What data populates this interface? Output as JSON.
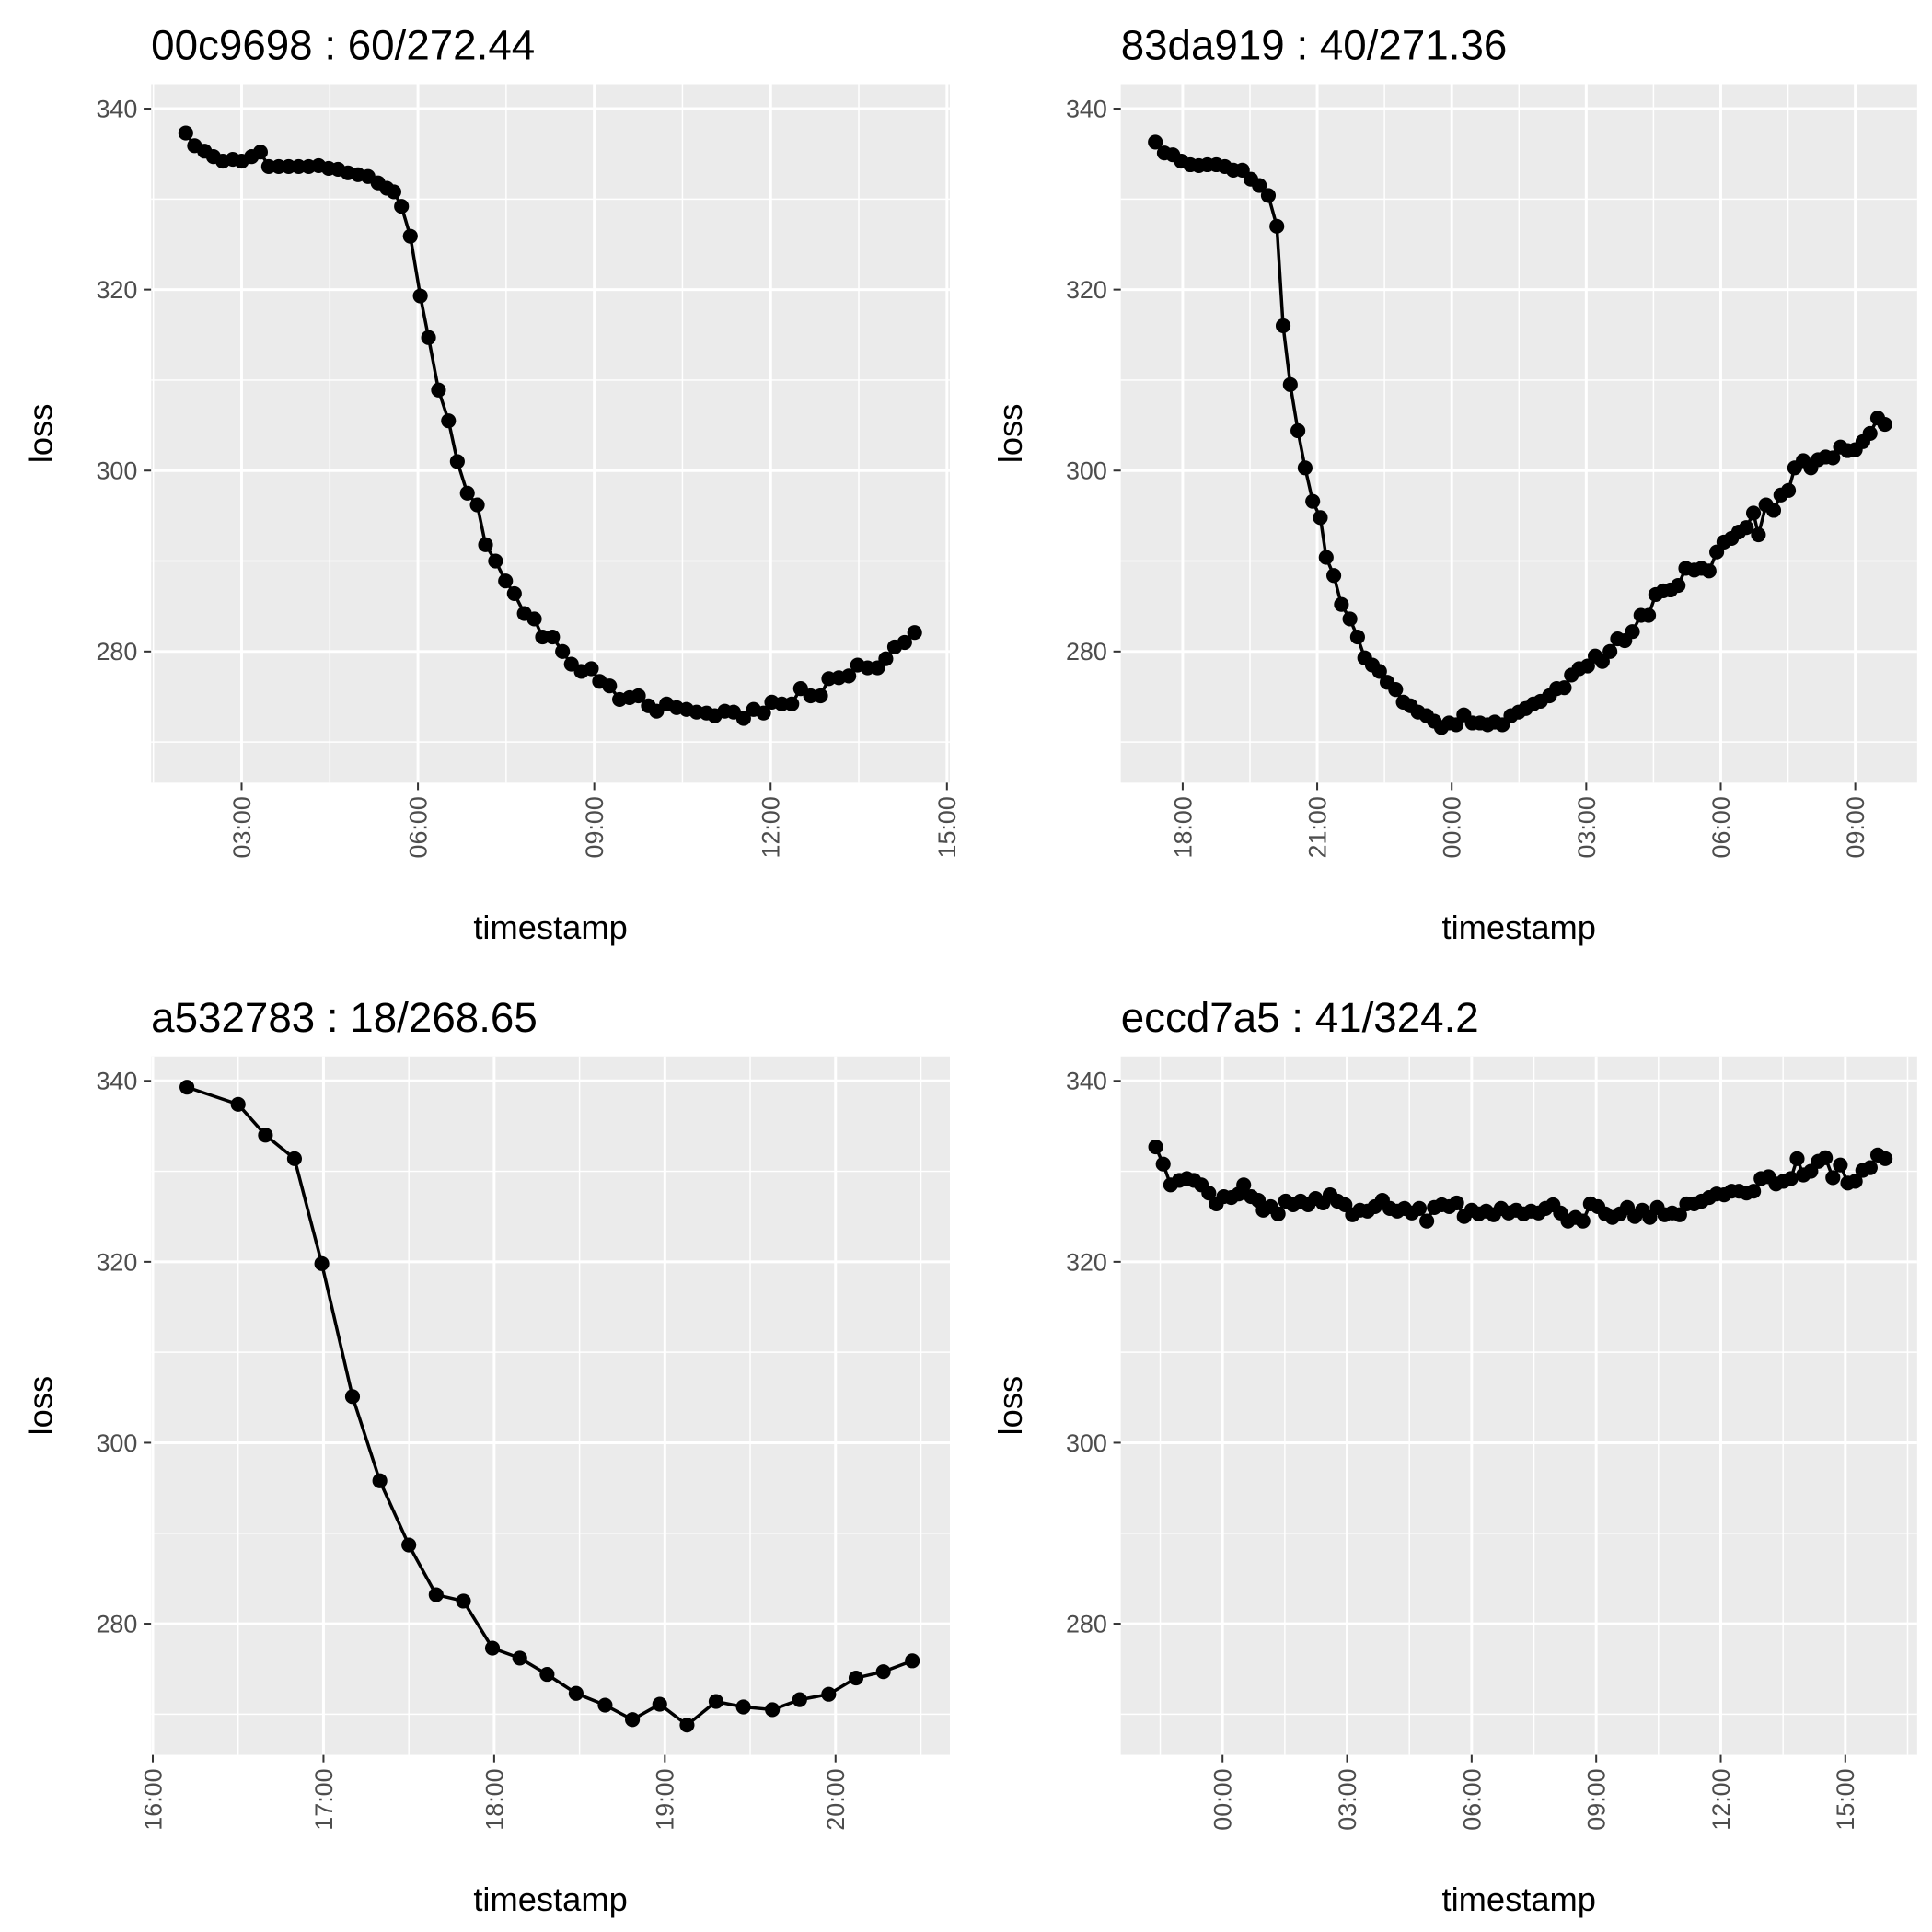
{
  "chart_data": [
    {
      "type": "line",
      "title": "00c9698 : 60/272.44",
      "xlabel": "timestamp",
      "ylabel": "loss",
      "color": "#000000",
      "grid": true,
      "x": [
        2.05,
        2.2,
        2.37,
        2.52,
        2.68,
        2.85,
        3.0,
        3.17,
        3.32,
        3.46,
        3.63,
        3.8,
        3.97,
        4.14,
        4.31,
        4.48,
        4.64,
        4.81,
        4.98,
        5.15,
        5.32,
        5.47,
        5.59,
        5.72,
        5.87,
        6.04,
        6.18,
        6.35,
        6.52,
        6.67,
        6.84,
        7.01,
        7.15,
        7.32,
        7.49,
        7.64,
        7.81,
        7.98,
        8.12,
        8.29,
        8.46,
        8.61,
        8.78,
        8.95,
        9.09,
        9.26,
        9.43,
        9.6,
        9.75,
        9.92,
        10.06,
        10.23,
        10.4,
        10.57,
        10.74,
        10.91,
        11.05,
        11.22,
        11.37,
        11.54,
        11.71,
        11.88,
        12.02,
        12.19,
        12.36,
        12.51,
        12.68,
        12.85,
        12.99,
        13.16,
        13.33,
        13.48,
        13.65,
        13.82,
        13.96,
        14.11,
        14.28,
        14.45
      ],
      "values": [
        337.3,
        335.9,
        335.3,
        334.7,
        334.2,
        334.4,
        334.2,
        334.7,
        335.2,
        333.6,
        333.6,
        333.6,
        333.6,
        333.6,
        333.7,
        333.4,
        333.3,
        332.9,
        332.7,
        332.5,
        331.8,
        331.2,
        330.8,
        329.2,
        325.9,
        319.3,
        314.7,
        308.9,
        305.5,
        301.0,
        297.5,
        296.2,
        291.8,
        290.0,
        287.8,
        286.4,
        284.2,
        283.6,
        281.6,
        281.6,
        280.0,
        278.6,
        277.8,
        278.1,
        276.7,
        276.2,
        274.7,
        274.9,
        275.1,
        274.0,
        273.4,
        274.2,
        273.8,
        273.6,
        273.3,
        273.2,
        272.9,
        273.4,
        273.3,
        272.6,
        273.6,
        273.2,
        274.4,
        274.2,
        274.2,
        275.9,
        275.1,
        275.1,
        277.0,
        277.1,
        277.3,
        278.5,
        278.2,
        278.2,
        279.2,
        280.5,
        281.0,
        282.1
      ],
      "xlim": [
        1.46,
        15.05
      ],
      "xticks": [
        {
          "value": 3,
          "label": "03:00"
        },
        {
          "value": 6,
          "label": "06:00"
        },
        {
          "value": 9,
          "label": "09:00"
        },
        {
          "value": 12,
          "label": "12:00"
        },
        {
          "value": 15,
          "label": "15:00"
        }
      ],
      "xminor": [
        1.5,
        4.5,
        7.5,
        10.5,
        13.5
      ],
      "ylim": [
        265.5,
        342.7
      ],
      "yticks": [
        280,
        300,
        320,
        340
      ],
      "yminor": [
        270,
        290,
        310,
        330
      ]
    },
    {
      "type": "line",
      "title": "83da919 : 40/271.36",
      "xlabel": "timestamp",
      "ylabel": "loss",
      "color": "#000000",
      "grid": true,
      "x": [
        17.39,
        17.59,
        17.78,
        17.97,
        18.17,
        18.36,
        18.55,
        18.75,
        18.94,
        19.13,
        19.33,
        19.52,
        19.71,
        19.91,
        20.1,
        20.24,
        20.4,
        20.57,
        20.73,
        20.9,
        21.07,
        21.2,
        21.37,
        21.54,
        21.73,
        21.9,
        22.06,
        22.23,
        22.39,
        22.56,
        22.75,
        22.92,
        23.08,
        23.25,
        23.44,
        23.61,
        23.77,
        23.94,
        24.1,
        24.27,
        24.46,
        24.63,
        24.8,
        24.96,
        25.13,
        25.32,
        25.49,
        25.65,
        25.82,
        25.98,
        26.18,
        26.34,
        26.51,
        26.67,
        26.84,
        27.03,
        27.2,
        27.36,
        27.53,
        27.7,
        27.86,
        28.03,
        28.22,
        28.39,
        28.55,
        28.72,
        28.88,
        29.05,
        29.22,
        29.41,
        29.57,
        29.74,
        29.91,
        30.07,
        30.24,
        30.4,
        30.57,
        30.73,
        30.84,
        31.01,
        31.18,
        31.34,
        31.51,
        31.65,
        31.84,
        32.01,
        32.17,
        32.34,
        32.5,
        32.67,
        32.83,
        33.0,
        33.17,
        33.33,
        33.5,
        33.66
      ],
      "values": [
        336.3,
        335.1,
        334.9,
        334.2,
        333.8,
        333.7,
        333.8,
        333.8,
        333.6,
        333.2,
        333.2,
        332.2,
        331.5,
        330.4,
        327.0,
        316.0,
        309.5,
        304.4,
        300.3,
        296.6,
        294.8,
        290.4,
        288.4,
        285.2,
        283.6,
        281.6,
        279.3,
        278.5,
        277.8,
        276.6,
        275.8,
        274.4,
        274.0,
        273.3,
        272.9,
        272.3,
        271.6,
        272.1,
        271.9,
        273.0,
        272.1,
        272.1,
        271.9,
        272.2,
        271.9,
        272.9,
        273.3,
        273.7,
        274.2,
        274.5,
        275.1,
        275.9,
        276.0,
        277.4,
        278.1,
        278.4,
        279.5,
        278.9,
        280.0,
        281.4,
        281.2,
        282.2,
        284.0,
        284.0,
        286.3,
        286.7,
        286.8,
        287.3,
        289.2,
        289.0,
        289.2,
        288.9,
        291.0,
        292.1,
        292.5,
        293.2,
        293.7,
        295.3,
        292.9,
        296.2,
        295.6,
        297.3,
        297.8,
        300.3,
        301.1,
        300.3,
        301.2,
        301.5,
        301.4,
        302.6,
        302.2,
        302.3,
        303.2,
        304.1,
        305.8,
        305.1
      ],
      "xlim": [
        16.62,
        34.38
      ],
      "xticks": [
        {
          "value": 18,
          "label": "18:00"
        },
        {
          "value": 21,
          "label": "21:00"
        },
        {
          "value": 24,
          "label": "00:00"
        },
        {
          "value": 27,
          "label": "03:00"
        },
        {
          "value": 30,
          "label": "06:00"
        },
        {
          "value": 33,
          "label": "09:00"
        }
      ],
      "xminor": [
        19.5,
        22.5,
        25.5,
        28.5,
        31.5
      ],
      "ylim": [
        265.5,
        342.7
      ],
      "yticks": [
        280,
        300,
        320,
        340
      ],
      "yminor": [
        270,
        290,
        310,
        330
      ]
    },
    {
      "type": "line",
      "title": "a532783 : 18/268.65",
      "xlabel": "timestamp",
      "ylabel": "loss",
      "color": "#000000",
      "grid": true,
      "x": [
        16.2,
        16.5,
        16.66,
        16.83,
        16.99,
        17.17,
        17.33,
        17.5,
        17.66,
        17.82,
        17.99,
        18.15,
        18.31,
        18.48,
        18.65,
        18.81,
        18.97,
        19.13,
        19.3,
        19.46,
        19.63,
        19.79,
        19.96,
        20.12,
        20.28,
        20.45
      ],
      "values": [
        339.3,
        337.4,
        334.0,
        331.4,
        319.8,
        305.1,
        295.8,
        288.7,
        283.2,
        282.5,
        277.3,
        276.2,
        274.4,
        272.3,
        271.0,
        269.4,
        271.1,
        268.8,
        271.4,
        270.8,
        270.5,
        271.6,
        272.2,
        274.0,
        274.7,
        275.9
      ],
      "xlim": [
        15.99,
        20.67
      ],
      "xticks": [
        {
          "value": 16,
          "label": "16:00"
        },
        {
          "value": 17,
          "label": "17:00"
        },
        {
          "value": 18,
          "label": "18:00"
        },
        {
          "value": 19,
          "label": "19:00"
        },
        {
          "value": 20,
          "label": "20:00"
        }
      ],
      "xminor": [
        16.5,
        17.5,
        18.5,
        19.5,
        20.5
      ],
      "ylim": [
        265.5,
        342.7
      ],
      "yticks": [
        280,
        300,
        320,
        340
      ],
      "yminor": [
        270,
        290,
        310,
        330
      ]
    },
    {
      "type": "line",
      "title": "eccd7a5 : 41/324.2",
      "xlabel": "timestamp",
      "ylabel": "loss",
      "color": "#000000",
      "grid": true,
      "x": [
        22.39,
        22.57,
        22.75,
        22.96,
        23.14,
        23.31,
        23.49,
        23.67,
        23.85,
        24.03,
        24.21,
        24.39,
        24.51,
        24.69,
        24.86,
        24.98,
        25.16,
        25.34,
        25.52,
        25.7,
        25.88,
        26.06,
        26.24,
        26.42,
        26.59,
        26.77,
        26.95,
        27.13,
        27.31,
        27.49,
        27.67,
        27.85,
        28.03,
        28.21,
        28.38,
        28.56,
        28.74,
        28.92,
        29.1,
        29.28,
        29.46,
        29.64,
        29.82,
        30.0,
        30.17,
        30.35,
        30.53,
        30.71,
        30.89,
        31.07,
        31.25,
        31.43,
        31.61,
        31.78,
        31.96,
        32.14,
        32.32,
        32.5,
        32.68,
        32.86,
        33.04,
        33.22,
        33.39,
        33.57,
        33.75,
        33.93,
        34.11,
        34.29,
        34.47,
        34.65,
        34.83,
        35.01,
        35.18,
        35.36,
        35.54,
        35.72,
        35.9,
        36.08,
        36.26,
        36.44,
        36.62,
        36.79,
        36.97,
        37.15,
        37.33,
        37.51,
        37.69,
        37.84,
        37.99,
        38.17,
        38.35,
        38.52,
        38.7,
        38.88,
        39.06,
        39.24,
        39.42,
        39.6,
        39.78,
        39.96
      ],
      "values": [
        332.7,
        330.8,
        328.5,
        329.0,
        329.2,
        329.0,
        328.5,
        327.6,
        326.4,
        327.2,
        327.1,
        327.5,
        328.5,
        327.2,
        326.8,
        325.7,
        326.1,
        325.3,
        326.7,
        326.3,
        326.7,
        326.3,
        327.0,
        326.5,
        327.4,
        326.7,
        326.3,
        325.2,
        325.7,
        325.6,
        326.1,
        326.8,
        325.9,
        325.6,
        325.9,
        325.4,
        325.9,
        324.5,
        326.0,
        326.3,
        326.1,
        326.5,
        325.0,
        325.7,
        325.3,
        325.6,
        325.2,
        325.9,
        325.4,
        325.7,
        325.3,
        325.6,
        325.4,
        325.9,
        326.3,
        325.4,
        324.5,
        324.9,
        324.5,
        326.4,
        326.1,
        325.3,
        324.9,
        325.3,
        326.0,
        325.0,
        325.7,
        324.9,
        326.0,
        325.2,
        325.4,
        325.2,
        326.4,
        326.4,
        326.7,
        327.1,
        327.5,
        327.4,
        327.8,
        327.8,
        327.6,
        327.8,
        329.2,
        329.4,
        328.6,
        328.9,
        329.2,
        331.4,
        329.6,
        330.0,
        331.1,
        331.5,
        329.3,
        330.7,
        328.7,
        328.9,
        330.1,
        330.4,
        331.8,
        331.4
      ],
      "xlim": [
        21.55,
        40.73
      ],
      "xticks": [
        {
          "value": 24,
          "label": "00:00"
        },
        {
          "value": 27,
          "label": "03:00"
        },
        {
          "value": 30,
          "label": "06:00"
        },
        {
          "value": 33,
          "label": "09:00"
        },
        {
          "value": 36,
          "label": "12:00"
        },
        {
          "value": 39,
          "label": "15:00"
        }
      ],
      "xminor": [
        22.5,
        25.5,
        28.5,
        31.5,
        34.5,
        37.5,
        40.5
      ],
      "ylim": [
        265.5,
        342.7
      ],
      "yticks": [
        280,
        300,
        320,
        340
      ],
      "yminor": [
        270,
        290,
        310,
        330
      ]
    }
  ]
}
